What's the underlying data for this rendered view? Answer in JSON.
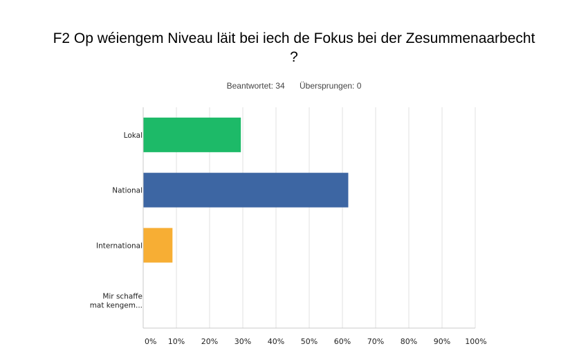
{
  "title_line1": "F2 Op wéiengem Niveau läit bei iech de Fokus bei der Zesummenaarbecht",
  "title_line2": "?",
  "stats": {
    "answered": "Beantwortet: 34",
    "skipped": "Übersprungen: 0"
  },
  "chart_data": {
    "type": "bar",
    "orientation": "horizontal",
    "title": "F2 Op wéiengem Niveau läit bei iech de Fokus bei der Zesummenaarbecht ?",
    "categories": [
      [
        "Lokal"
      ],
      [
        "National"
      ],
      [
        "International"
      ],
      [
        "Mir schaffe",
        "mat kengem..."
      ]
    ],
    "values": [
      29.41,
      61.76,
      8.82,
      0
    ],
    "colors": [
      "#1dba68",
      "#3d66a3",
      "#f7ae34",
      "#cccccc"
    ],
    "xlim": [
      0,
      100
    ],
    "xticks": [
      "0%",
      "10%",
      "20%",
      "30%",
      "40%",
      "50%",
      "60%",
      "70%",
      "80%",
      "90%",
      "100%"
    ],
    "grid": true,
    "legend": "none"
  }
}
